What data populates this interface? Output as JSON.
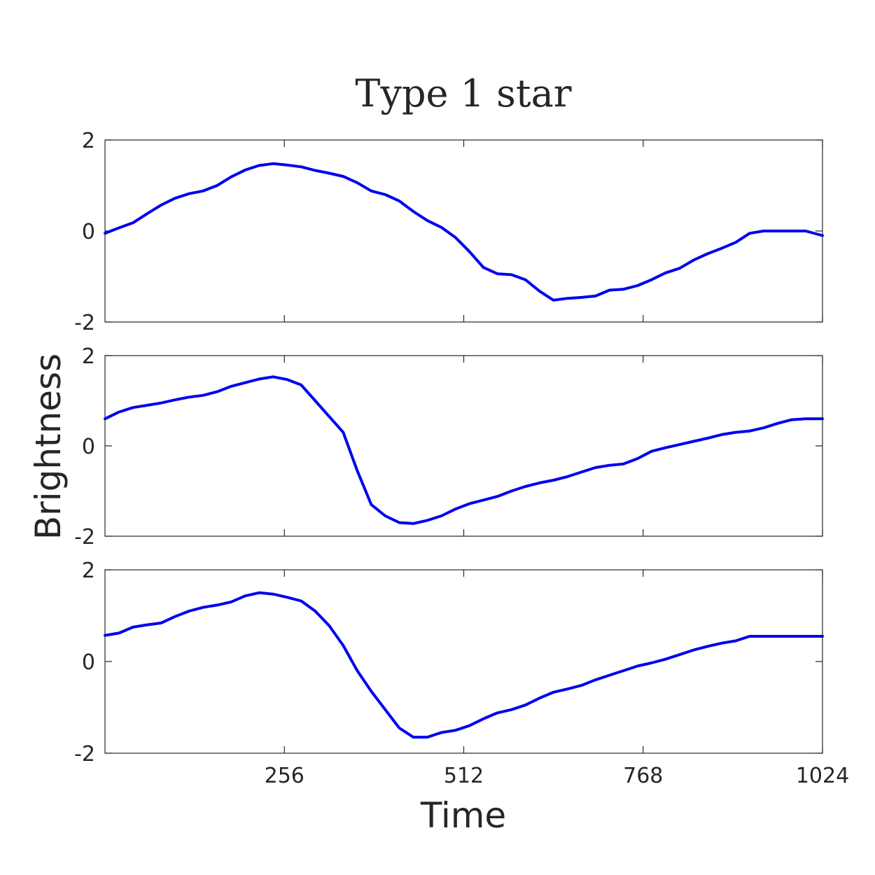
{
  "chart_data": {
    "type": "line",
    "title": "Type 1 star",
    "xlabel": "Time",
    "ylabel": "Brightness",
    "xlim": [
      0,
      1024
    ],
    "x_ticks": [
      256,
      512,
      768,
      1024
    ],
    "x_tick_labels": [
      "256",
      "512",
      "768",
      "1024"
    ],
    "line_color": "#0000ee",
    "panels": [
      {
        "ylim": [
          -2,
          2
        ],
        "y_ticks": [
          2,
          0,
          -2
        ],
        "y_tick_labels": [
          "2",
          "0",
          "-2"
        ],
        "series": [
          {
            "x": [
              0,
              20,
              40,
              60,
              80,
              100,
              120,
              140,
              160,
              180,
              200,
              220,
              240,
              260,
              280,
              300,
              320,
              340,
              360,
              380,
              400,
              420,
              440,
              460,
              480,
              500,
              520,
              540,
              560,
              580,
              600,
              620,
              640,
              660,
              680,
              700,
              720,
              740,
              760,
              780,
              800,
              820,
              840,
              860,
              880,
              900,
              920,
              940,
              960,
              980,
              1000,
              1024
            ],
            "y": [
              -0.05,
              0.07,
              0.18,
              0.38,
              0.57,
              0.72,
              0.82,
              0.88,
              1.0,
              1.19,
              1.34,
              1.44,
              1.48,
              1.45,
              1.41,
              1.33,
              1.27,
              1.2,
              1.06,
              0.88,
              0.8,
              0.66,
              0.43,
              0.23,
              0.08,
              -0.14,
              -0.45,
              -0.8,
              -0.94,
              -0.96,
              -1.07,
              -1.32,
              -1.52,
              -1.48,
              -1.46,
              -1.43,
              -1.3,
              -1.28,
              -1.2,
              -1.07,
              -0.92,
              -0.82,
              -0.64,
              -0.5,
              -0.38,
              -0.25,
              -0.05,
              0.0,
              0.0,
              0.0,
              0.0,
              -0.1
            ]
          }
        ]
      },
      {
        "ylim": [
          -2,
          2
        ],
        "y_ticks": [
          2,
          0,
          -2
        ],
        "y_tick_labels": [
          "2",
          "0",
          "-2"
        ],
        "series": [
          {
            "x": [
              0,
              20,
              40,
              60,
              80,
              100,
              120,
              140,
              160,
              180,
              200,
              220,
              240,
              260,
              280,
              300,
              320,
              340,
              360,
              380,
              400,
              420,
              440,
              460,
              480,
              500,
              520,
              540,
              560,
              580,
              600,
              620,
              640,
              660,
              680,
              700,
              720,
              740,
              760,
              780,
              800,
              820,
              840,
              860,
              880,
              900,
              920,
              940,
              960,
              980,
              1000,
              1024
            ],
            "y": [
              0.6,
              0.75,
              0.85,
              0.9,
              0.95,
              1.02,
              1.08,
              1.12,
              1.2,
              1.32,
              1.4,
              1.48,
              1.53,
              1.47,
              1.35,
              1.0,
              0.65,
              0.3,
              -0.55,
              -1.3,
              -1.55,
              -1.7,
              -1.72,
              -1.65,
              -1.55,
              -1.4,
              -1.28,
              -1.2,
              -1.12,
              -1.0,
              -0.9,
              -0.82,
              -0.76,
              -0.68,
              -0.58,
              -0.48,
              -0.43,
              -0.4,
              -0.28,
              -0.12,
              -0.04,
              0.03,
              0.1,
              0.17,
              0.25,
              0.3,
              0.33,
              0.4,
              0.5,
              0.58,
              0.6,
              0.6
            ]
          }
        ]
      },
      {
        "ylim": [
          -2,
          2
        ],
        "y_ticks": [
          2,
          0,
          -2
        ],
        "y_tick_labels": [
          "2",
          "0",
          "-2"
        ],
        "series": [
          {
            "x": [
              0,
              20,
              40,
              60,
              80,
              100,
              120,
              140,
              160,
              180,
              200,
              220,
              240,
              260,
              280,
              300,
              320,
              340,
              360,
              380,
              400,
              420,
              440,
              460,
              480,
              500,
              520,
              540,
              560,
              580,
              600,
              620,
              640,
              660,
              680,
              700,
              720,
              740,
              760,
              780,
              800,
              820,
              840,
              860,
              880,
              900,
              920,
              940,
              960,
              980,
              1000,
              1024
            ],
            "y": [
              0.57,
              0.62,
              0.75,
              0.8,
              0.84,
              0.98,
              1.1,
              1.18,
              1.23,
              1.3,
              1.43,
              1.5,
              1.47,
              1.4,
              1.32,
              1.1,
              0.78,
              0.35,
              -0.2,
              -0.65,
              -1.05,
              -1.45,
              -1.65,
              -1.65,
              -1.55,
              -1.5,
              -1.4,
              -1.25,
              -1.12,
              -1.05,
              -0.95,
              -0.8,
              -0.67,
              -0.6,
              -0.52,
              -0.4,
              -0.3,
              -0.2,
              -0.1,
              -0.03,
              0.05,
              0.15,
              0.25,
              0.33,
              0.4,
              0.45,
              0.55,
              0.55,
              0.55,
              0.55,
              0.55,
              0.55
            ]
          }
        ]
      }
    ]
  }
}
